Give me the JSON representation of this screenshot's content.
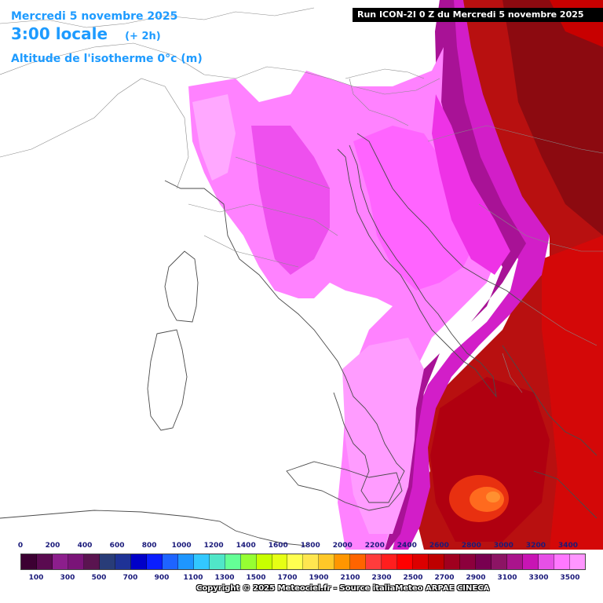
{
  "header": {
    "date": "Mercredi 5 novembre 2025",
    "time": "3:00 locale",
    "offset": "(+ 2h)",
    "parameter": "Altitude de l'isotherme 0°c (m)"
  },
  "run_banner": "Run ICON-2I 0 Z du Mercredi 5 novembre 2025",
  "legend": {
    "top_labels": [
      "0",
      "200",
      "400",
      "600",
      "800",
      "1000",
      "1200",
      "1400",
      "1600",
      "1800",
      "2000",
      "2200",
      "2400",
      "2600",
      "2800",
      "3000",
      "3200",
      "3400"
    ],
    "bottom_labels": [
      "100",
      "300",
      "500",
      "700",
      "900",
      "1100",
      "1300",
      "1500",
      "1700",
      "1900",
      "2100",
      "2300",
      "2500",
      "2700",
      "2900",
      "3100",
      "3300",
      "3500"
    ],
    "colors": [
      "#3c0032",
      "#5a0a50",
      "#8c1e8c",
      "#7a1478",
      "#5a1450",
      "#283c78",
      "#1e3296",
      "#0000c8",
      "#0a1eff",
      "#1e64ff",
      "#1e96ff",
      "#32c8ff",
      "#50e6c8",
      "#64ff96",
      "#96ff32",
      "#c8ff00",
      "#e6ff14",
      "#ffff50",
      "#ffe650",
      "#ffc828",
      "#ff9600",
      "#ff6400",
      "#ff3c3c",
      "#ff1e1e",
      "#ff0000",
      "#dc0000",
      "#be0000",
      "#a0001e",
      "#8c003c",
      "#780050",
      "#8c1464",
      "#aa148c",
      "#c814b4",
      "#e650e6",
      "#ff78ff",
      "#ff96ff"
    ]
  },
  "copyright": "Copyright © 2025 Meteociel.fr - Source italiaMeteo ARPAE CINECA"
}
